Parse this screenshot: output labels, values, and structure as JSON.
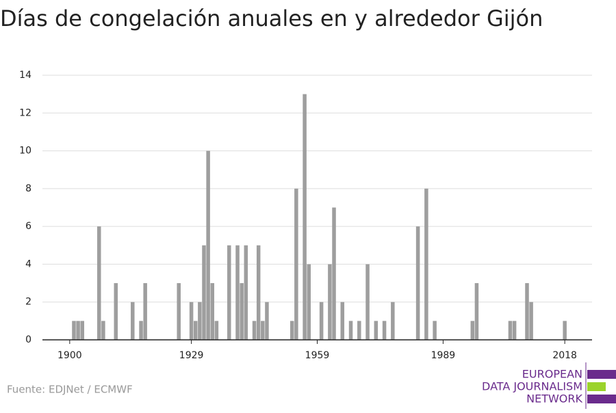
{
  "chart_data": {
    "type": "bar",
    "title": "Días de congelación anuales en y alrededor Gijón",
    "source": "Fuente: EDJNet / ECMWF",
    "logo": [
      "EUROPEAN",
      "DATA JOURNALISM",
      "NETWORK"
    ],
    "x": [
      1901,
      1902,
      1903,
      1907,
      1908,
      1911,
      1915,
      1917,
      1918,
      1926,
      1929,
      1930,
      1931,
      1932,
      1933,
      1934,
      1935,
      1938,
      1940,
      1941,
      1942,
      1944,
      1945,
      1946,
      1947,
      1953,
      1954,
      1956,
      1957,
      1960,
      1962,
      1963,
      1965,
      1967,
      1969,
      1971,
      1973,
      1975,
      1977,
      1983,
      1985,
      1987,
      1996,
      1997,
      2005,
      2006,
      2009,
      2010,
      2018
    ],
    "values": [
      1,
      1,
      1,
      6,
      1,
      3,
      2,
      1,
      3,
      3,
      2,
      1,
      2,
      5,
      10,
      3,
      1,
      5,
      5,
      3,
      5,
      1,
      5,
      1,
      2,
      1,
      8,
      13,
      4,
      2,
      4,
      7,
      2,
      1,
      1,
      4,
      1,
      1,
      2,
      6,
      8,
      1,
      1,
      3,
      1,
      1,
      3,
      2,
      1
    ],
    "color": "#9e9e9e",
    "xlim": [
      1893.5,
      2024.5
    ],
    "xticks": [
      1900,
      1929,
      1959,
      1989,
      2018
    ],
    "ylim": [
      0,
      14
    ],
    "yticks": [
      0,
      2,
      4,
      6,
      8,
      10,
      12,
      14
    ],
    "grid": true
  }
}
